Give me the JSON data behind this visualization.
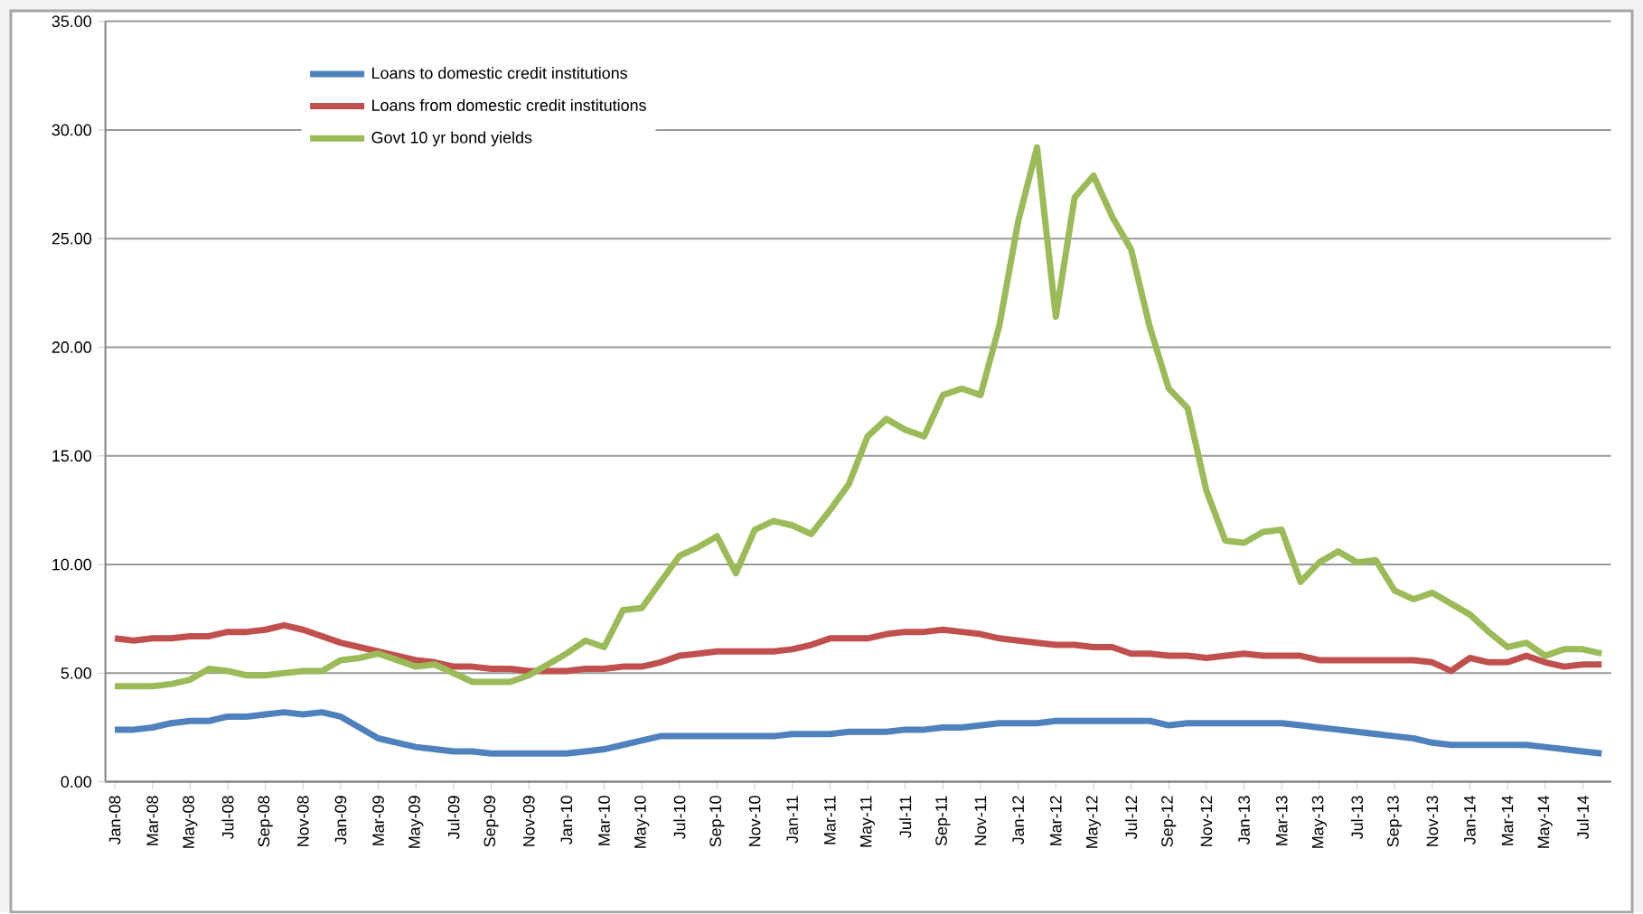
{
  "chart_data": {
    "type": "line",
    "categories": [
      "Jan-08",
      null,
      "Mar-08",
      null,
      "May-08",
      null,
      "Jul-08",
      null,
      "Sep-08",
      null,
      "Nov-08",
      null,
      "Jan-09",
      null,
      "Mar-09",
      null,
      "May-09",
      null,
      "Jul-09",
      null,
      "Sep-09",
      null,
      "Nov-09",
      null,
      "Jan-10",
      null,
      "Mar-10",
      null,
      "May-10",
      null,
      "Jul-10",
      null,
      "Sep-10",
      null,
      "Nov-10",
      null,
      "Jan-11",
      null,
      "Mar-11",
      null,
      "May-11",
      null,
      "Jul-11",
      null,
      "Sep-11",
      null,
      "Nov-11",
      null,
      "Jan-12",
      null,
      "Mar-12",
      null,
      "May-12",
      null,
      "Jul-12",
      null,
      "Sep-12",
      null,
      "Nov-12",
      null,
      "Jan-13",
      null,
      "Mar-13",
      null,
      "May-13",
      null,
      "Jul-13",
      null,
      "Sep-13",
      null,
      "Nov-13",
      null,
      "Jan-14",
      null,
      "Mar-14",
      null,
      "May-14",
      null,
      "Jul-14",
      null
    ],
    "series": [
      {
        "name": "Loans to domestic credit institutions",
        "color": "#4f81bd",
        "values": [
          2.4,
          2.4,
          2.5,
          2.7,
          2.8,
          2.8,
          3.0,
          3.0,
          3.1,
          3.2,
          3.1,
          3.2,
          3.0,
          2.5,
          2.0,
          1.8,
          1.6,
          1.5,
          1.4,
          1.4,
          1.3,
          1.3,
          1.3,
          1.3,
          1.3,
          1.4,
          1.5,
          1.7,
          1.9,
          2.1,
          2.1,
          2.1,
          2.1,
          2.1,
          2.1,
          2.1,
          2.2,
          2.2,
          2.2,
          2.3,
          2.3,
          2.3,
          2.4,
          2.4,
          2.5,
          2.5,
          2.6,
          2.7,
          2.7,
          2.7,
          2.8,
          2.8,
          2.8,
          2.8,
          2.8,
          2.8,
          2.6,
          2.7,
          2.7,
          2.7,
          2.7,
          2.7,
          2.7,
          2.6,
          2.5,
          2.4,
          2.3,
          2.2,
          2.1,
          2.0,
          1.8,
          1.7,
          1.7,
          1.7,
          1.7,
          1.7,
          1.6,
          1.5,
          1.4,
          1.3
        ]
      },
      {
        "name": "Loans from domestic credit institutions",
        "color": "#c0504d",
        "values": [
          6.6,
          6.5,
          6.6,
          6.6,
          6.7,
          6.7,
          6.9,
          6.9,
          7.0,
          7.2,
          7.0,
          6.7,
          6.4,
          6.2,
          6.0,
          5.8,
          5.6,
          5.5,
          5.3,
          5.3,
          5.2,
          5.2,
          5.1,
          5.1,
          5.1,
          5.2,
          5.2,
          5.3,
          5.3,
          5.5,
          5.8,
          5.9,
          6.0,
          6.0,
          6.0,
          6.0,
          6.1,
          6.3,
          6.6,
          6.6,
          6.6,
          6.8,
          6.9,
          6.9,
          7.0,
          6.9,
          6.8,
          6.6,
          6.5,
          6.4,
          6.3,
          6.3,
          6.2,
          6.2,
          5.9,
          5.9,
          5.8,
          5.8,
          5.7,
          5.8,
          5.9,
          5.8,
          5.8,
          5.8,
          5.6,
          5.6,
          5.6,
          5.6,
          5.6,
          5.6,
          5.5,
          5.1,
          5.7,
          5.5,
          5.5,
          5.8,
          5.5,
          5.3,
          5.4,
          5.4
        ]
      },
      {
        "name": "Govt 10 yr bond yields",
        "color": "#9bbb59",
        "values": [
          4.4,
          4.4,
          4.4,
          4.5,
          4.7,
          5.2,
          5.1,
          4.9,
          4.9,
          5.0,
          5.1,
          5.1,
          5.6,
          5.7,
          5.9,
          5.6,
          5.3,
          5.4,
          5.0,
          4.6,
          4.6,
          4.6,
          4.9,
          5.4,
          5.9,
          6.5,
          6.2,
          7.9,
          8.0,
          9.2,
          10.4,
          10.8,
          11.3,
          9.6,
          11.6,
          12.0,
          11.8,
          11.4,
          12.5,
          13.7,
          15.9,
          16.7,
          16.2,
          15.9,
          17.8,
          18.1,
          17.8,
          21.0,
          25.8,
          29.2,
          21.4,
          26.9,
          27.9,
          26.0,
          24.5,
          20.9,
          18.1,
          17.2,
          13.4,
          11.1,
          11.0,
          11.5,
          11.6,
          9.2,
          10.1,
          10.6,
          10.1,
          10.2,
          8.8,
          8.4,
          8.7,
          8.2,
          7.7,
          6.9,
          6.2,
          6.4,
          5.8,
          6.1,
          6.1,
          5.9
        ]
      }
    ],
    "ylim": [
      0,
      35
    ],
    "yticks": [
      {
        "value": 0,
        "label": "0.00"
      },
      {
        "value": 5,
        "label": "5.00"
      },
      {
        "value": 10,
        "label": "10.00"
      },
      {
        "value": 15,
        "label": "15.00"
      },
      {
        "value": 20,
        "label": "20.00"
      },
      {
        "value": 25,
        "label": "25.00"
      },
      {
        "value": 30,
        "label": "30.00"
      },
      {
        "value": 35,
        "label": "35.00"
      }
    ],
    "grid": "y",
    "legend": "top left",
    "marker": "none",
    "line_style": "solid"
  }
}
